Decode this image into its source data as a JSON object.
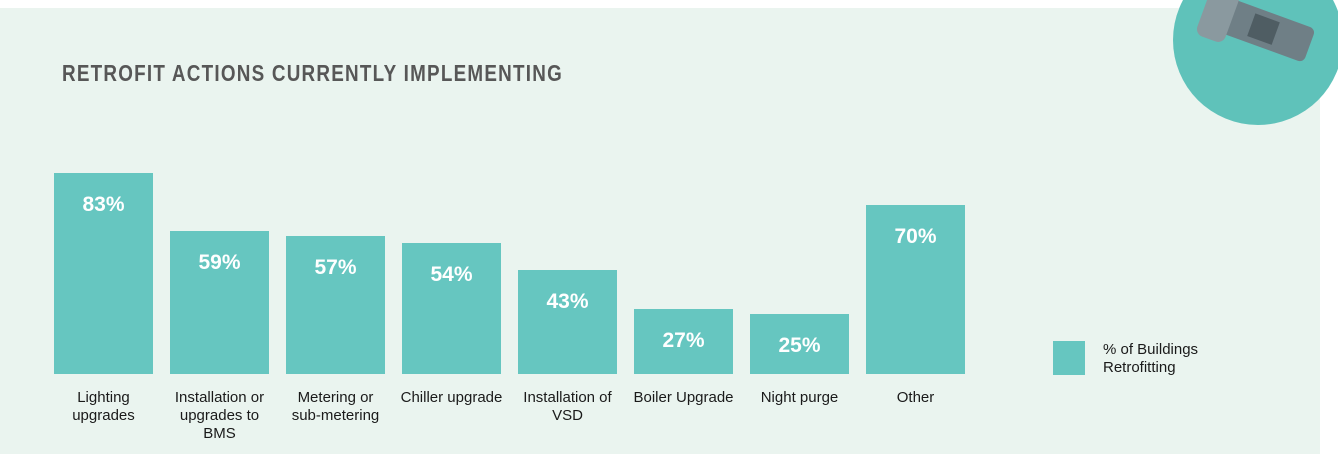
{
  "chart_data": {
    "type": "bar",
    "title": "RETROFIT ACTIONS CURRENTLY IMPLEMENTING",
    "categories": [
      "Lighting upgrades",
      "Installation or upgrades to BMS",
      "Metering or sub-metering",
      "Chiller upgrade",
      "Installation of VSD",
      "Boiler Upgrade",
      "Night purge",
      "Other"
    ],
    "series": [
      {
        "name": "% of Buildings Retrofitting",
        "color": "#66c6c0",
        "values": [
          83,
          59,
          57,
          54,
          43,
          27,
          25,
          70
        ],
        "value_labels": [
          "83%",
          "59%",
          "57%",
          "54%",
          "43%",
          "27%",
          "25%",
          "70%"
        ]
      }
    ]
  }
}
